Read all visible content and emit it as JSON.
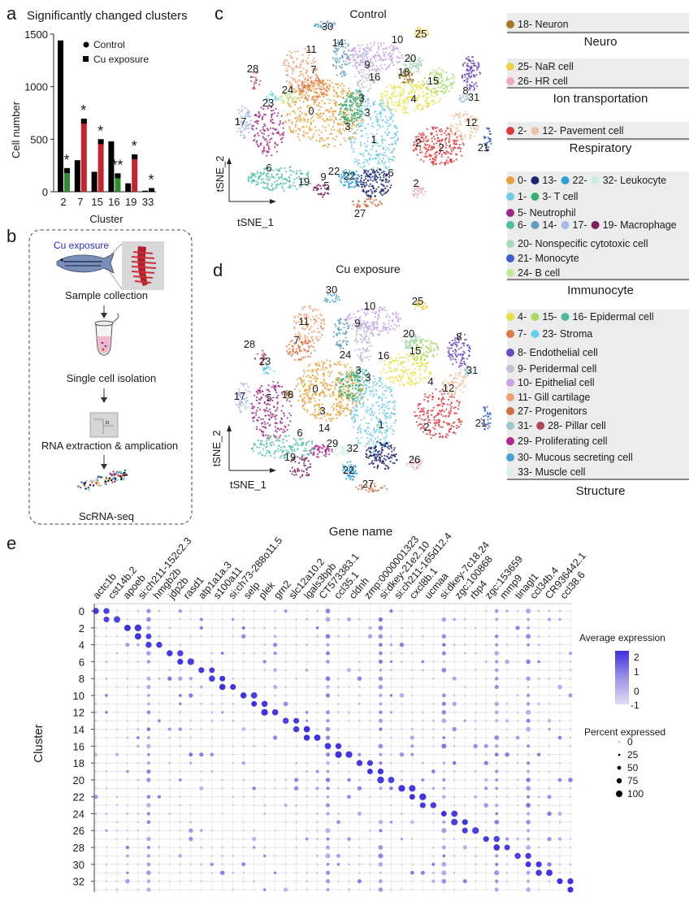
{
  "panel_a": {
    "letter": "a",
    "chart_data": {
      "type": "bar",
      "title": "Significantly changed clusters",
      "xlabel": "Cluster",
      "ylabel": "Cell number",
      "ylim": [
        0,
        1500
      ],
      "yticks": [
        "0",
        "500",
        "1000",
        "1500"
      ],
      "categories": [
        "2",
        "7",
        "15",
        "16",
        "19",
        "33"
      ],
      "category_colors": [
        "#2e8b2e",
        "#c0262d",
        "#c0262d",
        "#2e8b2e",
        "#c0262d",
        "#c0262d"
      ],
      "series": [
        {
          "name": "Control",
          "values": [
            1440,
            300,
            190,
            480,
            80,
            10
          ],
          "color": "#000000"
        },
        {
          "name": "Cu exposure",
          "values": [
            225,
            695,
            500,
            175,
            355,
            35
          ],
          "color": "#000000"
        }
      ],
      "significance_marks": [
        "*",
        "*",
        "*",
        "**",
        "*",
        "*"
      ],
      "legend_position": "top-right"
    }
  },
  "panel_b": {
    "letter": "b",
    "steps": [
      "Cu exposure",
      "Sample collection",
      "Single cell isolation",
      "RNA extraction & amplication",
      "ScRNA-seq"
    ]
  },
  "panel_c": {
    "letter": "c",
    "title": "Control",
    "xaxis": "tSNE_1",
    "yaxis": "tSNE_2",
    "labels": [
      "30",
      "14",
      "10",
      "25",
      "11",
      "20",
      "9",
      "28",
      "7",
      "16",
      "18",
      "15",
      "24",
      "3",
      "8",
      "4",
      "23",
      "31",
      "0",
      "3",
      "17",
      "12",
      "3",
      "1",
      "2",
      "21",
      "6",
      "19",
      "9",
      "22",
      "22",
      "6",
      "2",
      "27",
      "5",
      "2"
    ]
  },
  "panel_d": {
    "letter": "d",
    "title": "Cu exposure",
    "xaxis": "tSNE_1",
    "yaxis": "tSNE_2",
    "labels": [
      "30",
      "25",
      "11",
      "10",
      "9",
      "28",
      "7",
      "8",
      "20",
      "24",
      "16",
      "15",
      "23",
      "3",
      "4",
      "31",
      "18",
      "3",
      "12",
      "17",
      "5",
      "0",
      "3",
      "2",
      "21",
      "14",
      "1",
      "6",
      "29",
      "32",
      "19",
      "22",
      "26",
      "27"
    ]
  },
  "legend": {
    "groups": [
      {
        "name": "Neuro",
        "items": [
          [
            {
              "color": "#a07a28",
              "label": "18- Neuron"
            }
          ]
        ]
      },
      {
        "name": "Ion transportation",
        "items": [
          [
            {
              "color": "#f2d04a",
              "label": "25- NaR cell"
            }
          ],
          [
            {
              "color": "#f0a8c0",
              "label": "26- HR cell"
            }
          ]
        ]
      },
      {
        "name": "Respiratory",
        "items": [
          [
            {
              "color": "#e0383c",
              "label": "2-"
            },
            {
              "color": "#e9c4a4",
              "label": "12- Pavement cell"
            }
          ]
        ]
      },
      {
        "name": "Immunocyte",
        "items": [
          [
            {
              "color": "#e8a23a",
              "label": "0-"
            },
            {
              "color": "#1f2470",
              "label": "13-"
            },
            {
              "color": "#2b9fd6",
              "label": "22-"
            },
            {
              "color": "#c8efe6",
              "label": "32- Leukocyte"
            }
          ],
          [
            {
              "color": "#70cbe6",
              "label": "1-"
            },
            {
              "color": "#3aae70",
              "label": "3- T cell"
            }
          ],
          [
            {
              "color": "#a0288a",
              "label": "5- Neutrophil"
            }
          ],
          [
            {
              "color": "#4fc0a8",
              "label": "6-"
            },
            {
              "color": "#5f9fbf",
              "label": "14-"
            },
            {
              "color": "#a8b8e8",
              "label": "17-"
            },
            {
              "color": "#7a1f5a",
              "label": "19- Macrophage"
            }
          ],
          [
            {
              "color": "#a8d8b8",
              "label": "20- Nonspecific cytotoxic cell"
            }
          ],
          [
            {
              "color": "#3a60c8",
              "label": "21- Monocyte"
            }
          ],
          [
            {
              "color": "#c0e890",
              "label": "24- B cell"
            }
          ]
        ]
      },
      {
        "name": "Structure",
        "items": [
          [
            {
              "color": "#e8e040",
              "label": "4-"
            },
            {
              "color": "#a8d860",
              "label": "15-"
            },
            {
              "color": "#4fb89a",
              "label": "16- Epidermal cell"
            }
          ],
          [
            {
              "color": "#e0784a",
              "label": "7-"
            },
            {
              "color": "#5fd0e8",
              "label": "23- Stroma"
            }
          ],
          [
            {
              "color": "#6a48c0",
              "label": "8- Endothelial cell"
            }
          ],
          [
            {
              "color": "#c0c0d8",
              "label": "9- Peridermal cell"
            }
          ],
          [
            {
              "color": "#c8a0e8",
              "label": "10- Epithelial cell"
            }
          ],
          [
            {
              "color": "#f0a070",
              "label": "11- Gill cartilage"
            }
          ],
          [
            {
              "color": "#d07048",
              "label": "27- Progenitors"
            }
          ],
          [
            {
              "color": "#9ac8d8",
              "label": "31-"
            },
            {
              "color": "#b04858",
              "label": "28- Pillar cell"
            }
          ],
          [
            {
              "color": "#b02890",
              "label": "29- Proliferating cell"
            }
          ],
          [
            {
              "color": "#4aa0d0",
              "label": "30- Mucous secreting cell"
            }
          ],
          [
            {
              "color": "#d8f0e8",
              "label": "33- Muscle cell"
            }
          ]
        ]
      }
    ]
  },
  "panel_e": {
    "letter": "e",
    "chart_data": {
      "type": "dot",
      "title": "Gene name",
      "ylabel": "Cluster",
      "genes": [
        "actc1b",
        "cst14b.2",
        "apoeb",
        "si:ch211-152c2.3",
        "hmgb2b",
        "jdp2b",
        "rasd1",
        "atp1a1a.3",
        "s100a11",
        "si:ch73-288o11.5",
        "selp",
        "plek",
        "grn2",
        "slc12a10.2",
        "lgals3bpb",
        "CT573383.1",
        "ccl35.1",
        "cldnh",
        "zmp:0000001323",
        "si:dkey-21e2.10",
        "si:ch211-165d12.4",
        "cxcl8b.1",
        "ucmaa",
        "si:dkey-7c18.24",
        "zgc:100868",
        "rbp4",
        "zgc:153659",
        "mmp9",
        "tinagl1",
        "ccl34b.4",
        "CR936442.1",
        "ccl38.6"
      ],
      "ytick_labels": [
        "0",
        "2",
        "4",
        "6",
        "8",
        "10",
        "12",
        "14",
        "16",
        "18",
        "20",
        "22",
        "24",
        "26",
        "28",
        "30",
        "32"
      ],
      "n_clusters": 34,
      "n_columns": 46,
      "color_legend": {
        "title": "Average expression",
        "ticks": [
          "2",
          "1",
          "0",
          "-1"
        ],
        "low": "#dcd8f0",
        "high": "#3b30e0"
      },
      "size_legend": {
        "title": "Percent expressed",
        "ticks": [
          "0",
          "25",
          "50",
          "75",
          "100"
        ]
      }
    }
  }
}
